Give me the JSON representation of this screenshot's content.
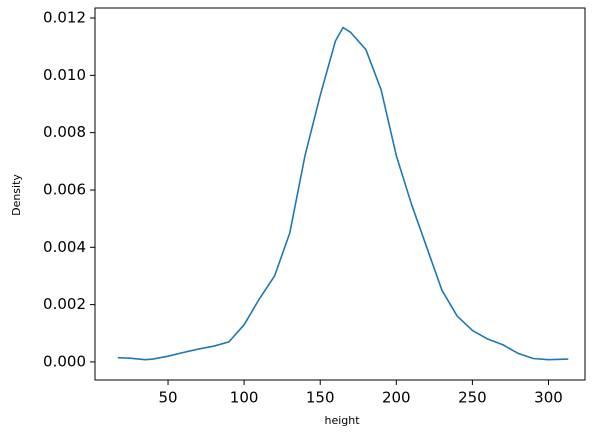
{
  "chart_data": {
    "type": "line",
    "xlabel": "height",
    "ylabel": "Density",
    "x": [
      17,
      25,
      35,
      40,
      50,
      60,
      70,
      80,
      90,
      100,
      110,
      120,
      130,
      140,
      150,
      160,
      165,
      170,
      180,
      190,
      200,
      210,
      220,
      230,
      240,
      250,
      260,
      270,
      280,
      290,
      300,
      313
    ],
    "series": [
      {
        "color": "#1f77b4",
        "values": [
          0.00015,
          0.00013,
          8e-05,
          0.0001,
          0.0002,
          0.00033,
          0.00045,
          0.00055,
          0.0007,
          0.0013,
          0.0022,
          0.003,
          0.0045,
          0.0072,
          0.0093,
          0.0112,
          0.01167,
          0.0115,
          0.0109,
          0.0095,
          0.0072,
          0.0055,
          0.004,
          0.0025,
          0.0016,
          0.0011,
          0.0008,
          0.0006,
          0.0003,
          0.00012,
          8e-05,
          0.0001
        ]
      }
    ],
    "xlim": [
      2,
      324
    ],
    "xticks": [
      50,
      100,
      150,
      200,
      250,
      300
    ],
    "ylim": [
      -0.00063,
      0.01235
    ],
    "yticks": [
      {
        "value": 0,
        "label": "0.000"
      },
      {
        "value": 0.002,
        "label": "0.002"
      },
      {
        "value": 0.004,
        "label": "0.004"
      },
      {
        "value": 0.006,
        "label": "0.006"
      },
      {
        "value": 0.008,
        "label": "0.008"
      },
      {
        "value": 0.01,
        "label": "0.010"
      },
      {
        "value": 0.012,
        "label": "0.012"
      }
    ]
  }
}
